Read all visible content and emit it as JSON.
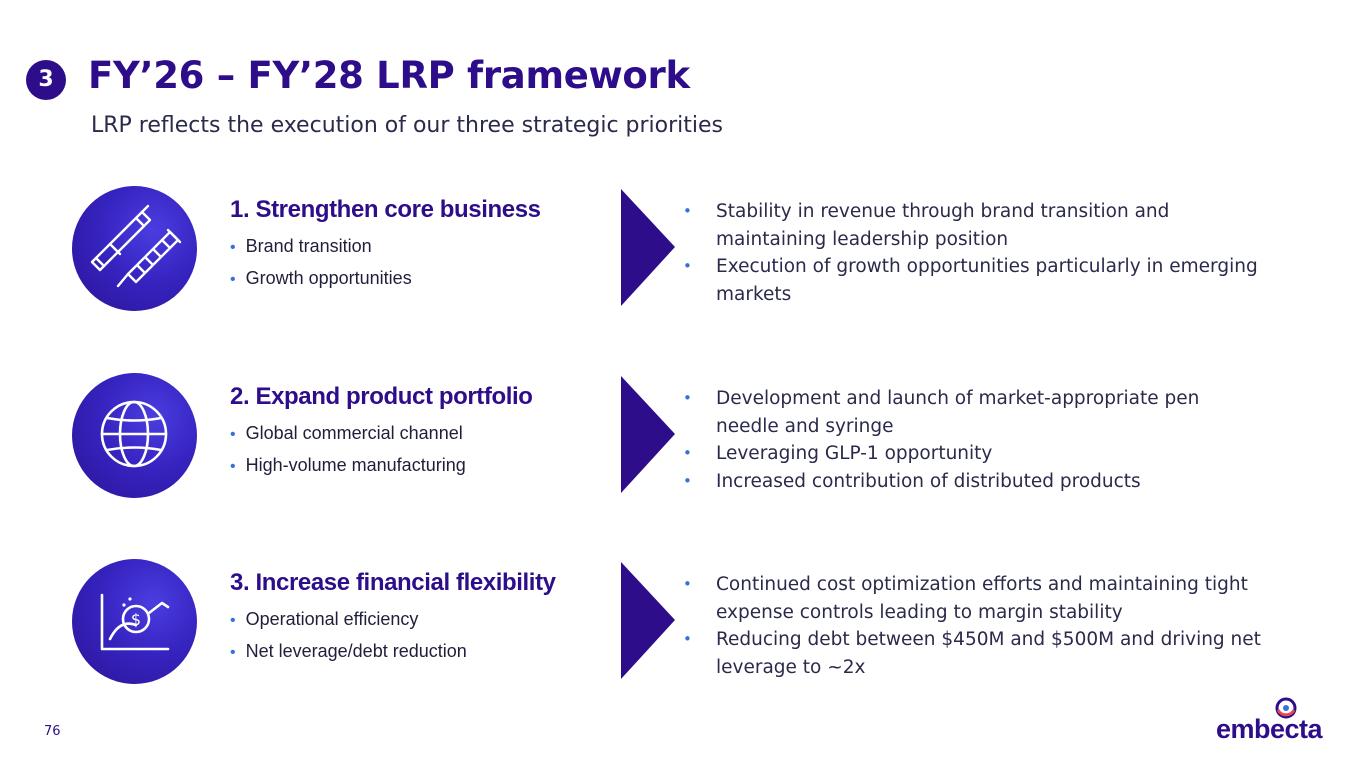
{
  "header": {
    "section_number": "3",
    "title": "FY’26 – FY’28 LRP framework",
    "subtitle": "LRP reflects the execution of our three strategic priorities"
  },
  "colors": {
    "brand": "#2e0d8a",
    "bullet": "#3a6fd8",
    "arrow": "#2e0d8a"
  },
  "priorities": [
    {
      "icon": "pen-syringe-icon",
      "title": "1. Strengthen core business",
      "items": [
        "Brand transition",
        "Growth opportunities"
      ],
      "details": [
        "Stability in revenue through brand transition and maintaining leadership position",
        "Execution of growth opportunities particularly in emerging markets"
      ]
    },
    {
      "icon": "globe-icon",
      "title": "2. Expand product portfolio",
      "items": [
        "Global commercial channel",
        "High-volume manufacturing"
      ],
      "details": [
        "Development and launch of market-appropriate pen needle and syringe",
        "Leveraging GLP-1 opportunity",
        "Increased contribution of distributed products"
      ]
    },
    {
      "icon": "dollar-growth-chart-icon",
      "title": "3. Increase financial flexibility",
      "items": [
        "Operational efficiency",
        "Net leverage/debt reduction"
      ],
      "details": [
        "Continued cost optimization efforts and maintaining tight expense controls leading to margin stability",
        "Reducing debt between $450M and $500M and driving net leverage to ~2x"
      ]
    }
  ],
  "footer": {
    "page_number": "76",
    "logo_text": "embecta"
  }
}
